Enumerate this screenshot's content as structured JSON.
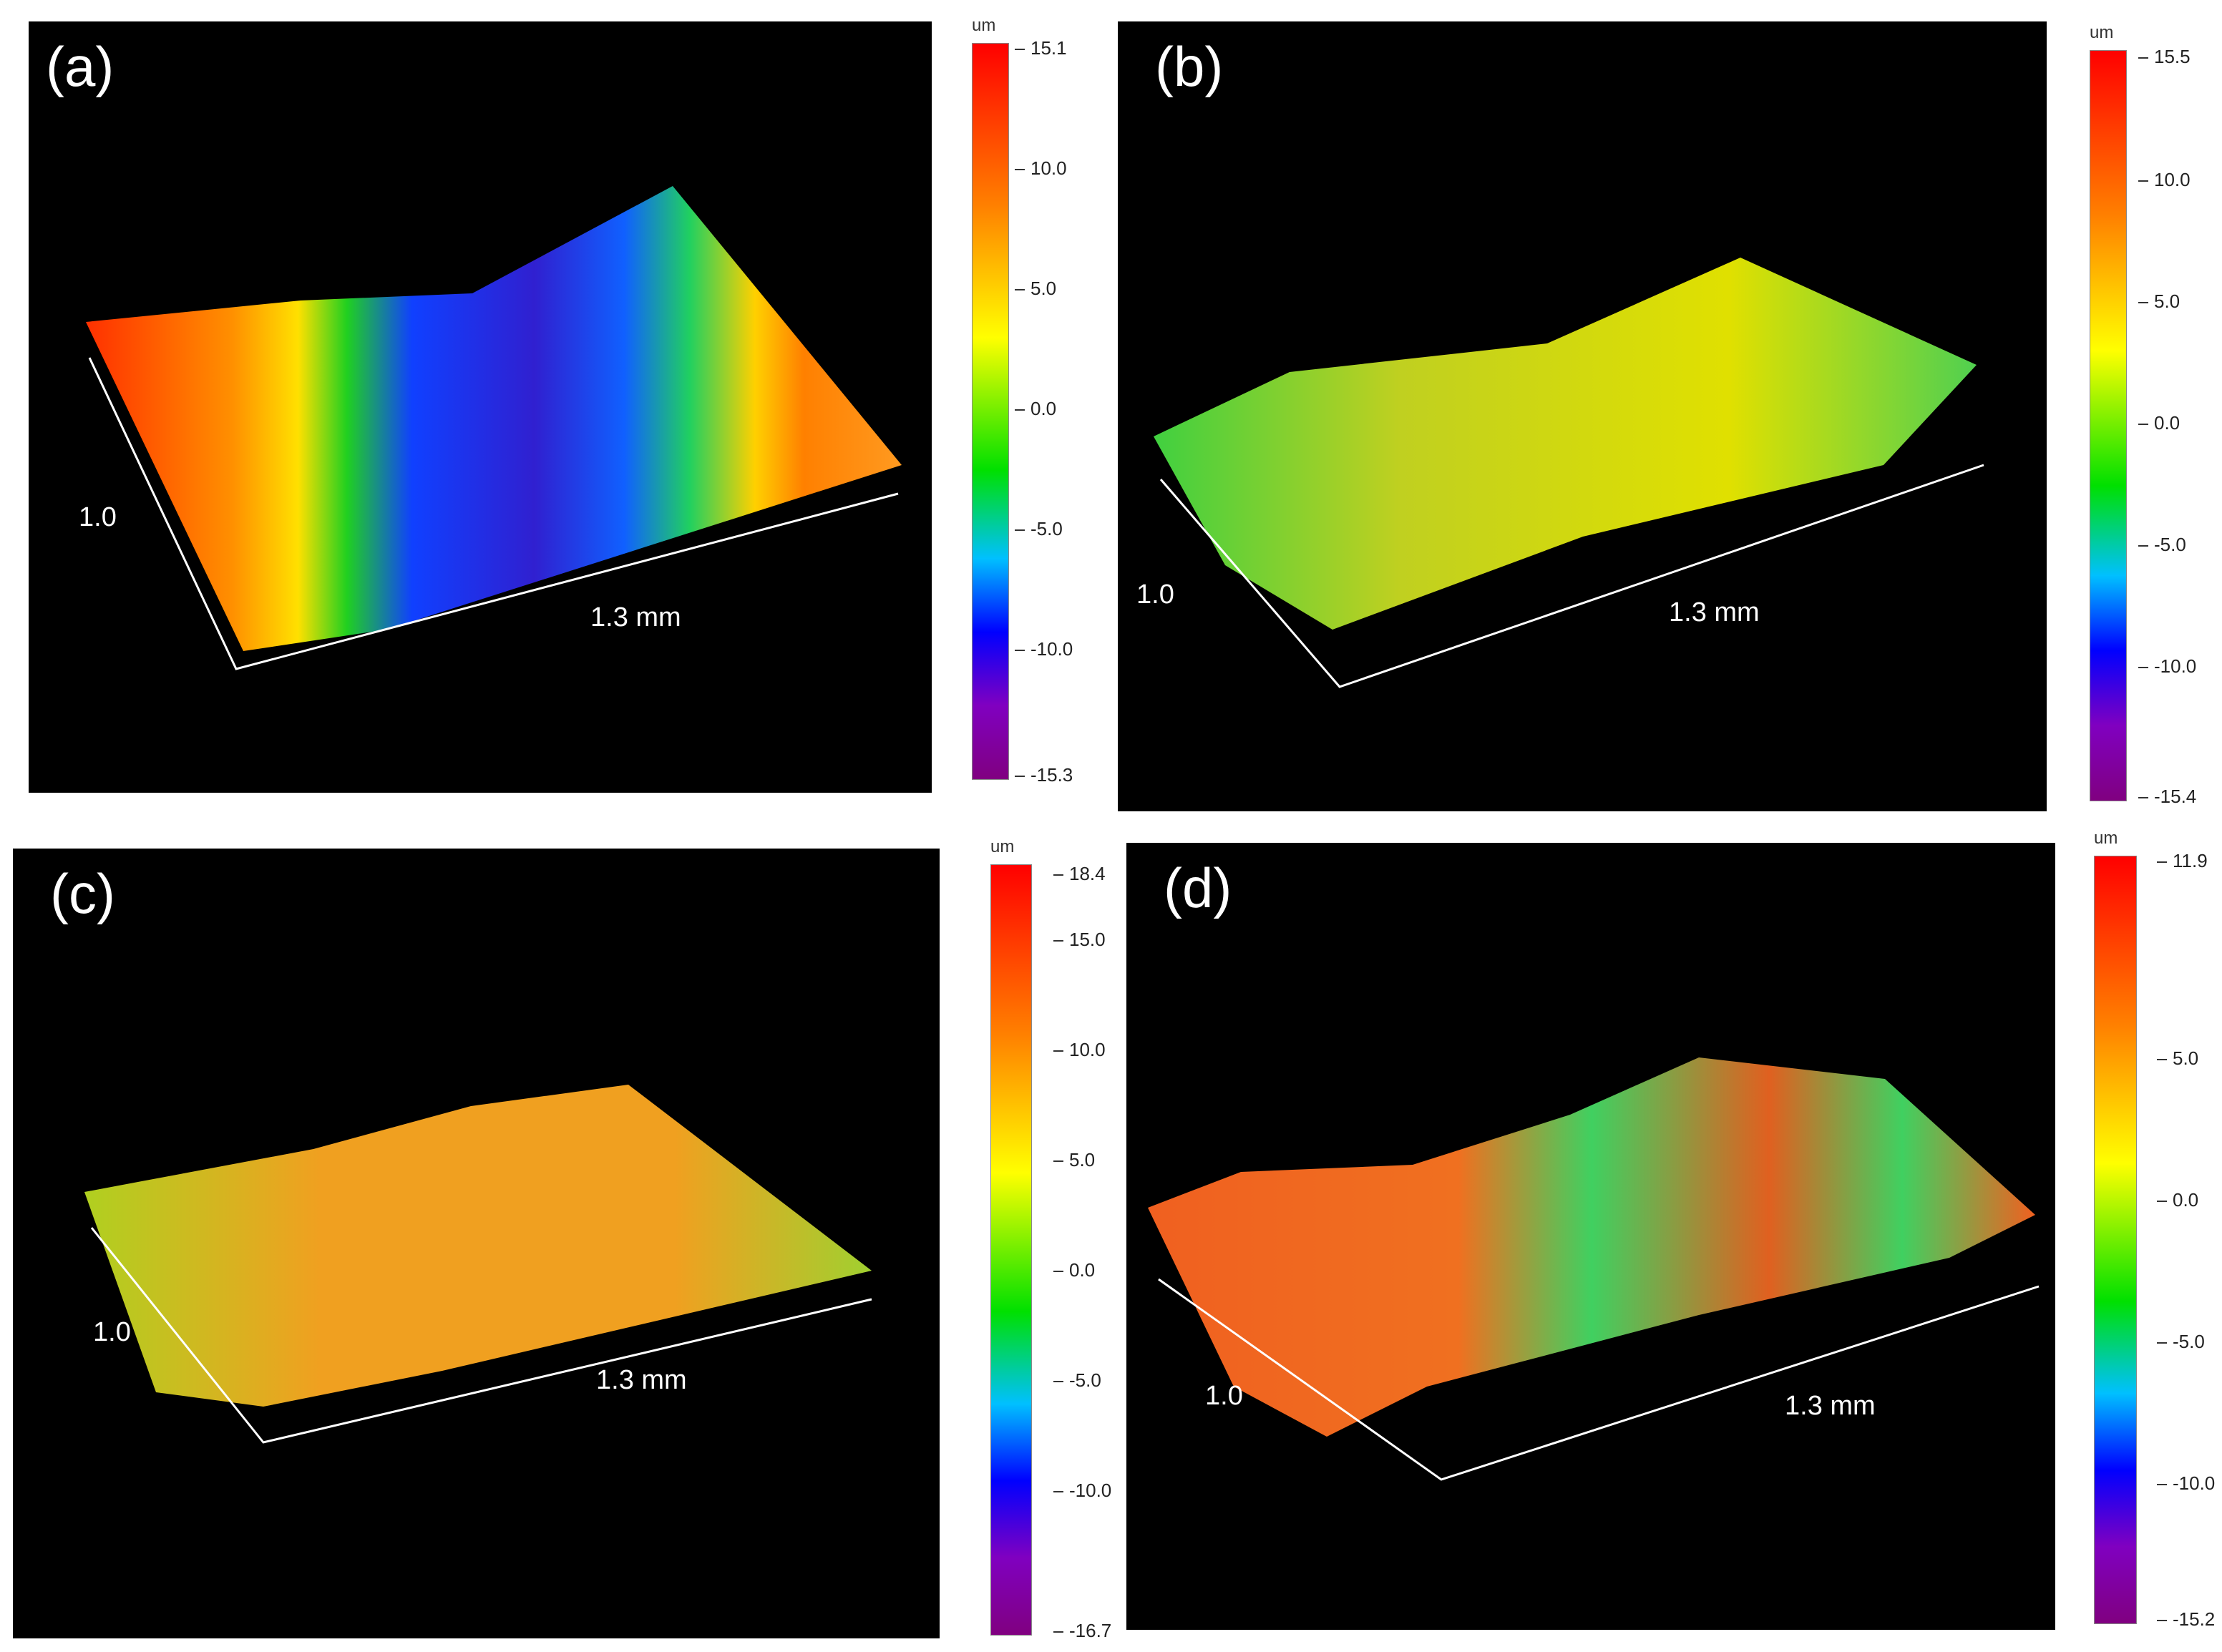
{
  "unit": "um",
  "axis_x_label": "1.3 mm",
  "axis_y_label": "1.0",
  "panels": {
    "a": {
      "label": "(a)",
      "cb_max": "15.1",
      "cb_min": "-15.3",
      "ticks": [
        "10.0",
        "5.0",
        "0.0",
        "-5.0",
        "-10.0"
      ]
    },
    "b": {
      "label": "(b)",
      "cb_max": "15.5",
      "cb_min": "-15.4",
      "ticks": [
        "10.0",
        "5.0",
        "0.0",
        "-5.0",
        "-10.0"
      ]
    },
    "c": {
      "label": "(c)",
      "cb_max": "18.4",
      "cb_min": "-16.7",
      "ticks": [
        "15.0",
        "10.0",
        "5.0",
        "0.0",
        "-5.0",
        "-10.0"
      ]
    },
    "d": {
      "label": "(d)",
      "cb_max": "11.9",
      "cb_min": "-15.2",
      "ticks": [
        "5.0",
        "0.0",
        "-5.0",
        "-10.0"
      ]
    }
  },
  "colors": {
    "background": "#000000",
    "axis": "#ffffff"
  }
}
